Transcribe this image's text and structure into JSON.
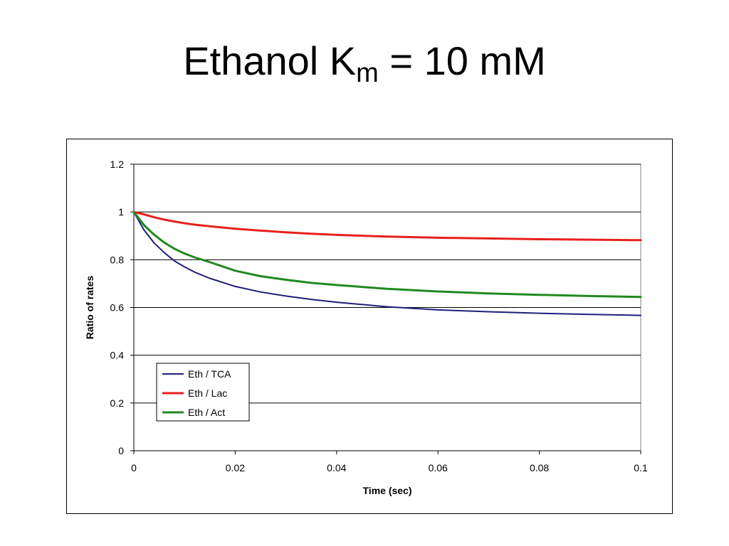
{
  "slide": {
    "title_main": "Ethanol K",
    "title_sub": "m",
    "title_rest": " = 10 mM"
  },
  "chart_data": {
    "type": "line",
    "xlabel": "Time (sec)",
    "ylabel": "Ratio of rates",
    "xlim": [
      0,
      0.1
    ],
    "ylim": [
      0,
      1.2
    ],
    "xticks": [
      0,
      0.02,
      0.04,
      0.06,
      0.08,
      0.1
    ],
    "xtick_labels": [
      "0",
      "0.02",
      "0.04",
      "0.06",
      "0.08",
      "0.1"
    ],
    "yticks": [
      0,
      0.2,
      0.4,
      0.6,
      0.8,
      1,
      1.2
    ],
    "ytick_labels": [
      "0",
      "0.2",
      "0.4",
      "0.6",
      "0.8",
      "1",
      "1.2"
    ],
    "grid": "horizontal major gridlines",
    "legend_position": "lower-left",
    "series": [
      {
        "name": "Eth / TCA",
        "color": "#1f1f7a",
        "x": [
          0,
          0.002,
          0.004,
          0.006,
          0.008,
          0.01,
          0.012,
          0.015,
          0.02,
          0.025,
          0.03,
          0.035,
          0.04,
          0.05,
          0.06,
          0.07,
          0.08,
          0.09,
          0.1
        ],
        "y": [
          1.0,
          0.925,
          0.87,
          0.83,
          0.795,
          0.77,
          0.748,
          0.722,
          0.688,
          0.665,
          0.648,
          0.634,
          0.622,
          0.603,
          0.59,
          0.582,
          0.576,
          0.571,
          0.567
        ]
      },
      {
        "name": "Eth / Lac",
        "color": "#e8201c",
        "x": [
          0,
          0.002,
          0.004,
          0.006,
          0.008,
          0.01,
          0.012,
          0.015,
          0.02,
          0.025,
          0.03,
          0.035,
          0.04,
          0.05,
          0.06,
          0.07,
          0.08,
          0.09,
          0.1
        ],
        "y": [
          1.0,
          0.99,
          0.978,
          0.968,
          0.96,
          0.953,
          0.947,
          0.94,
          0.93,
          0.922,
          0.915,
          0.909,
          0.904,
          0.897,
          0.892,
          0.889,
          0.886,
          0.884,
          0.882
        ]
      },
      {
        "name": "Eth / Act",
        "color": "#1f8a1f",
        "x": [
          0,
          0.002,
          0.004,
          0.006,
          0.008,
          0.01,
          0.012,
          0.015,
          0.02,
          0.025,
          0.03,
          0.035,
          0.04,
          0.05,
          0.06,
          0.07,
          0.08,
          0.09,
          0.1
        ],
        "y": [
          1.0,
          0.945,
          0.905,
          0.872,
          0.846,
          0.826,
          0.81,
          0.79,
          0.754,
          0.731,
          0.716,
          0.703,
          0.694,
          0.678,
          0.667,
          0.659,
          0.653,
          0.648,
          0.644
        ]
      }
    ]
  }
}
